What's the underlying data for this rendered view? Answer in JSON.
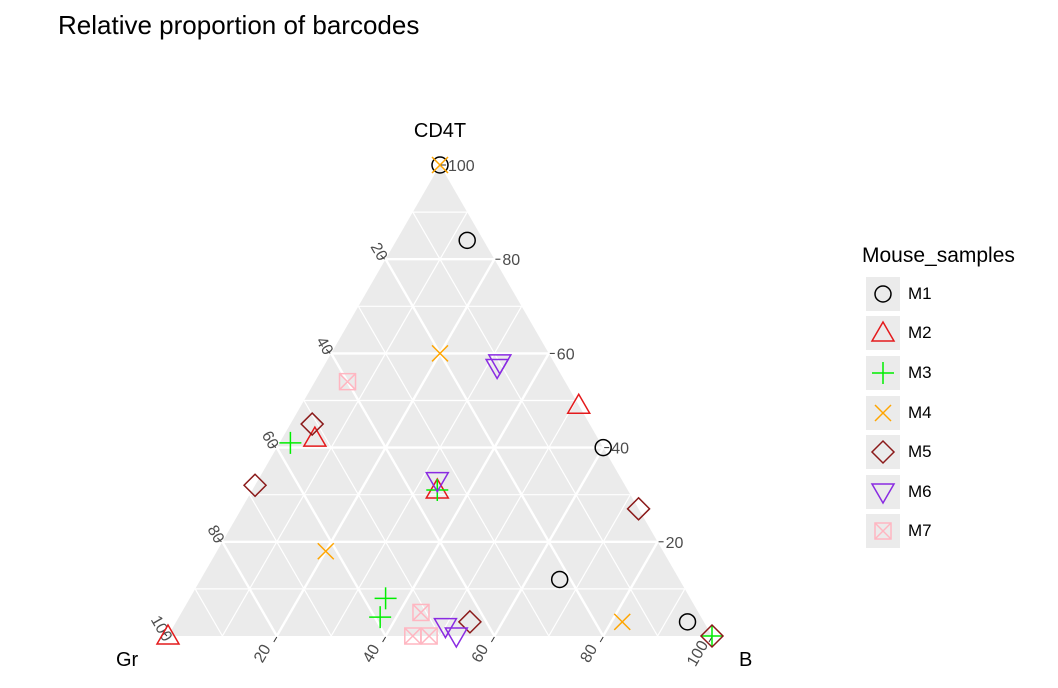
{
  "chart_data": {
    "type": "ternary-scatter",
    "title": "Relative proportion of barcodes",
    "axes": {
      "top": "CD4T",
      "left": "Gr",
      "right": "B"
    },
    "ticks": [
      20,
      40,
      60,
      80,
      100
    ],
    "grid": true,
    "legend": {
      "title": "Mouse_samples",
      "placement": "right"
    },
    "series": [
      {
        "name": "M1",
        "color": "#000000",
        "marker": "circle",
        "points": [
          {
            "CD4T": 100,
            "Gr": 0,
            "B": 0
          },
          {
            "CD4T": 84,
            "Gr": 3,
            "B": 13
          },
          {
            "CD4T": 40,
            "Gr": 0,
            "B": 60
          },
          {
            "CD4T": 12,
            "Gr": 22,
            "B": 66
          },
          {
            "CD4T": 3,
            "Gr": 3,
            "B": 94
          }
        ]
      },
      {
        "name": "M2",
        "color": "#e41a1c",
        "marker": "triangle-up",
        "points": [
          {
            "CD4T": 49,
            "Gr": 0,
            "B": 51
          },
          {
            "CD4T": 42,
            "Gr": 52,
            "B": 6
          },
          {
            "CD4T": 31,
            "Gr": 35,
            "B": 34
          },
          {
            "CD4T": 0,
            "Gr": 100,
            "B": 0
          }
        ]
      },
      {
        "name": "M3",
        "color": "#00ee00",
        "marker": "plus",
        "points": [
          {
            "CD4T": 41,
            "Gr": 57,
            "B": 2
          },
          {
            "CD4T": 31,
            "Gr": 35,
            "B": 34
          },
          {
            "CD4T": 8,
            "Gr": 56,
            "B": 36
          },
          {
            "CD4T": 4,
            "Gr": 59,
            "B": 37
          },
          {
            "CD4T": 0,
            "Gr": 0,
            "B": 100
          }
        ]
      },
      {
        "name": "M4",
        "color": "#ffa500",
        "marker": "x",
        "points": [
          {
            "CD4T": 100,
            "Gr": 0,
            "B": 0
          },
          {
            "CD4T": 60,
            "Gr": 20,
            "B": 20
          },
          {
            "CD4T": 18,
            "Gr": 62,
            "B": 20
          },
          {
            "CD4T": 3,
            "Gr": 15,
            "B": 82
          }
        ]
      },
      {
        "name": "M5",
        "color": "#8b1a1a",
        "marker": "diamond",
        "points": [
          {
            "CD4T": 45,
            "Gr": 51,
            "B": 4
          },
          {
            "CD4T": 32,
            "Gr": 68,
            "B": 0
          },
          {
            "CD4T": 27,
            "Gr": 0,
            "B": 73
          },
          {
            "CD4T": 3,
            "Gr": 43,
            "B": 54
          },
          {
            "CD4T": 0,
            "Gr": 0,
            "B": 100
          }
        ]
      },
      {
        "name": "M6",
        "color": "#8a2be2",
        "marker": "triangle-down",
        "points": [
          {
            "CD4T": 58,
            "Gr": 10,
            "B": 32
          },
          {
            "CD4T": 57,
            "Gr": 11,
            "B": 32
          },
          {
            "CD4T": 33,
            "Gr": 34,
            "B": 33
          },
          {
            "CD4T": 2,
            "Gr": 48,
            "B": 50
          },
          {
            "CD4T": 0,
            "Gr": 47,
            "B": 53
          }
        ]
      },
      {
        "name": "M7",
        "color": "#ffb6c1",
        "marker": "square-x",
        "points": [
          {
            "CD4T": 54,
            "Gr": 40,
            "B": 6
          },
          {
            "CD4T": 5,
            "Gr": 51,
            "B": 44
          },
          {
            "CD4T": 0,
            "Gr": 55,
            "B": 45
          },
          {
            "CD4T": 0,
            "Gr": 52,
            "B": 48
          }
        ]
      }
    ]
  }
}
